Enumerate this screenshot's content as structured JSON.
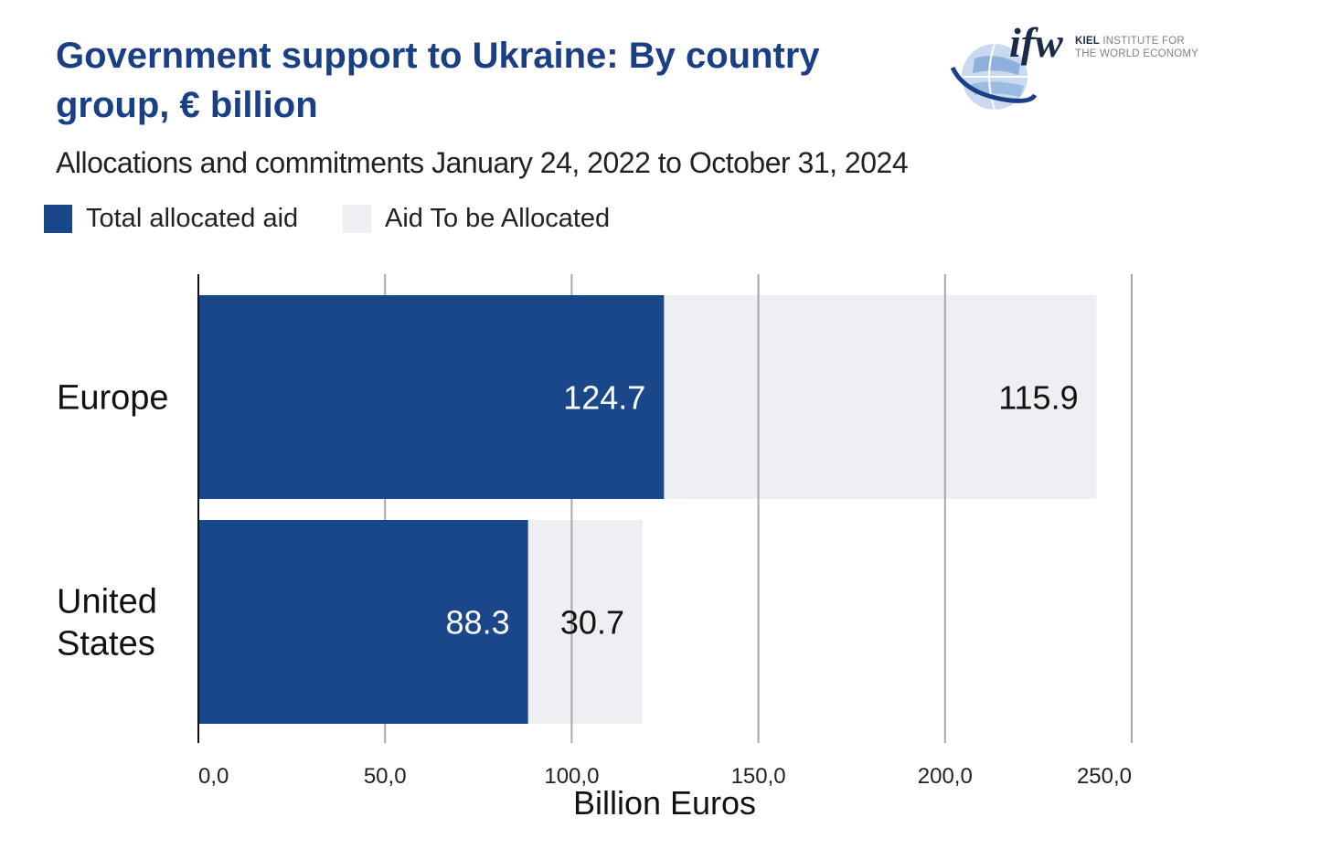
{
  "header": {
    "title": "Government support to Ukraine: By country group, € billion",
    "subtitle": "Allocations and commitments January 24, 2022 to October 31, 2024"
  },
  "logo": {
    "mark": "ifw",
    "text_bold": "KIEL",
    "text_line1": "INSTITUTE FOR",
    "text_line2": "THE WORLD ECONOMY"
  },
  "colors": {
    "allocated": "#1a4789",
    "to_be_allocated": "#eeeff3",
    "title": "#1a3f84",
    "grid": "#a8a8a8"
  },
  "chart_data": {
    "type": "bar",
    "orientation": "horizontal",
    "stacked": true,
    "categories": [
      "Europe",
      "United States"
    ],
    "series": [
      {
        "name": "Total allocated aid",
        "values": [
          124.7,
          88.3
        ],
        "labels": [
          "124.7",
          "88.3"
        ]
      },
      {
        "name": "Aid To be Allocated",
        "values": [
          115.9,
          30.7
        ],
        "labels": [
          "115.9",
          "30.7"
        ]
      }
    ],
    "xlim": [
      0,
      250
    ],
    "xticks": [
      0,
      50,
      100,
      150,
      200,
      250
    ],
    "xtick_labels": [
      "0,0",
      "50,0",
      "100,0",
      "150,0",
      "200,0",
      "250,0"
    ],
    "xlabel": "Billion Euros",
    "grid": "vertical",
    "legend_position": "top-left"
  }
}
